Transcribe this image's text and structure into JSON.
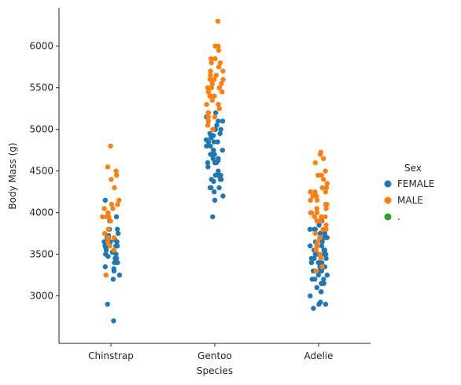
{
  "chart_data": {
    "type": "scatter",
    "subtype": "strip",
    "xlabel": "Species",
    "ylabel": "Body Mass (g)",
    "categories": [
      "Chinstrap",
      "Gentoo",
      "Adelie"
    ],
    "yticks": [
      3000,
      3500,
      4000,
      4500,
      5000,
      5500,
      6000
    ],
    "ylim": [
      2430,
      6460
    ],
    "legend": {
      "title": "Sex",
      "placement": "right",
      "entries": [
        {
          "label": "FEMALE",
          "color": "#1f77b4"
        },
        {
          "label": "MALE",
          "color": "#ff7f0e"
        },
        {
          "label": ".",
          "color": "#2ca02c"
        }
      ]
    },
    "series": [
      {
        "name": "FEMALE",
        "color": "#1f77b4",
        "values": {
          "Chinstrap": [
            2700,
            2900,
            3200,
            3250,
            3300,
            3325,
            3350,
            3400,
            3400,
            3450,
            3450,
            3475,
            3500,
            3500,
            3525,
            3550,
            3575,
            3600,
            3600,
            3650,
            3650,
            3650,
            3675,
            3700,
            3700,
            3725,
            3750,
            3800,
            3800,
            3900,
            3950,
            4150,
            3600,
            3700
          ],
          "Gentoo": [
            3950,
            4150,
            4200,
            4250,
            4300,
            4300,
            4375,
            4400,
            4400,
            4400,
            4450,
            4450,
            4500,
            4550,
            4600,
            4600,
            4625,
            4650,
            4650,
            4700,
            4700,
            4700,
            4750,
            4750,
            4750,
            4800,
            4800,
            4850,
            4850,
            4875,
            4900,
            4900,
            4925,
            4950,
            4950,
            5000,
            5000,
            5000,
            5050,
            5100,
            5150,
            5200,
            4850,
            4600,
            4450,
            4300,
            4700,
            5100
          ],
          "Adelie": [
            2850,
            2900,
            2900,
            2925,
            3000,
            3050,
            3050,
            3100,
            3150,
            3150,
            3200,
            3200,
            3250,
            3250,
            3300,
            3300,
            3325,
            3350,
            3350,
            3400,
            3400,
            3450,
            3450,
            3450,
            3500,
            3500,
            3500,
            3550,
            3550,
            3550,
            3600,
            3600,
            3600,
            3650,
            3650,
            3700,
            3700,
            3700,
            3750,
            3750,
            3800,
            3800,
            3800,
            3850,
            3900,
            3900,
            3300,
            3400,
            3150,
            3500,
            3600,
            3200,
            3700
          ]
        }
      },
      {
        "name": "MALE",
        "color": "#ff7f0e",
        "values": {
          "Chinstrap": [
            3250,
            3550,
            3600,
            3650,
            3700,
            3800,
            3950,
            3950,
            4000,
            4050,
            4100,
            4150,
            4300,
            4400,
            4450,
            4500,
            4550,
            4800,
            3900,
            3750,
            4100,
            3700,
            3950,
            4050
          ],
          "Gentoo": [
            5000,
            5050,
            5100,
            5150,
            5200,
            5250,
            5300,
            5300,
            5350,
            5400,
            5400,
            5450,
            5500,
            5500,
            5550,
            5550,
            5600,
            5600,
            5650,
            5650,
            5700,
            5700,
            5750,
            5800,
            5800,
            5850,
            5850,
            5950,
            6000,
            6000,
            6300,
            5400,
            5200,
            5500,
            5300,
            5450,
            5150,
            5600
          ],
          "Adelie": [
            3300,
            3350,
            3450,
            3500,
            3550,
            3600,
            3650,
            3700,
            3750,
            3800,
            3850,
            3900,
            3900,
            3950,
            3950,
            4000,
            4000,
            4050,
            4050,
            4100,
            4150,
            4150,
            4200,
            4200,
            4250,
            4250,
            4300,
            4300,
            4350,
            4400,
            4450,
            4450,
            4500,
            4600,
            4650,
            4700,
            4725,
            3900,
            4000,
            4100,
            3800,
            4250,
            3950
          ]
        }
      },
      {
        "name": ".",
        "color": "#2ca02c",
        "values": {
          "Chinstrap": [],
          "Gentoo": [],
          "Adelie": []
        }
      }
    ]
  }
}
